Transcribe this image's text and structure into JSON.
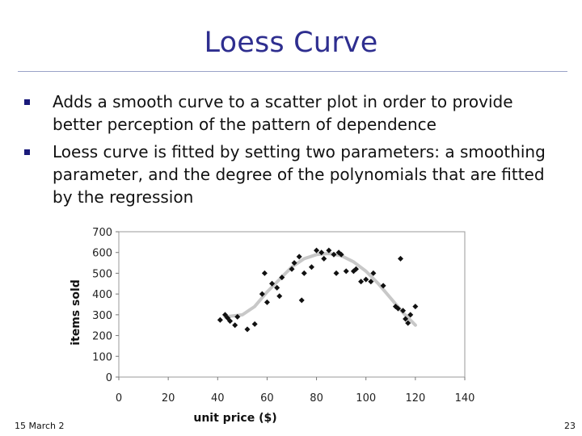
{
  "slide": {
    "title": "Loess Curve",
    "bullets": [
      "Adds a smooth curve to a scatter plot in order to provide better perception of the pattern of dependence",
      "Loess curve is fitted by setting two parameters: a smoothing parameter, and the degree of the polynomials that are fitted by the regression"
    ],
    "footer_date": "15 March 2",
    "page_number": "23",
    "colors": {
      "title": "#2e2e8f",
      "bullet": "#1a1a7a",
      "curve": "#c8c8c8",
      "points": "#111111"
    }
  },
  "chart_data": {
    "type": "scatter",
    "title": "",
    "xlabel": "unit price ($)",
    "ylabel": "items sold",
    "xlim": [
      0,
      140
    ],
    "ylim": [
      0,
      700
    ],
    "xticks": [
      "0",
      "20",
      "40",
      "60",
      "80",
      "100",
      "120",
      "140"
    ],
    "yticks": [
      "0",
      "100",
      "200",
      "300",
      "400",
      "500",
      "600",
      "700"
    ],
    "points": [
      [
        41,
        275
      ],
      [
        43,
        300
      ],
      [
        44,
        285
      ],
      [
        45,
        270
      ],
      [
        47,
        250
      ],
      [
        48,
        290
      ],
      [
        52,
        230
      ],
      [
        55,
        255
      ],
      [
        58,
        400
      ],
      [
        59,
        500
      ],
      [
        60,
        360
      ],
      [
        62,
        450
      ],
      [
        64,
        430
      ],
      [
        65,
        390
      ],
      [
        66,
        480
      ],
      [
        70,
        520
      ],
      [
        71,
        550
      ],
      [
        73,
        580
      ],
      [
        74,
        370
      ],
      [
        75,
        500
      ],
      [
        78,
        530
      ],
      [
        80,
        610
      ],
      [
        82,
        600
      ],
      [
        83,
        570
      ],
      [
        85,
        610
      ],
      [
        87,
        590
      ],
      [
        88,
        500
      ],
      [
        89,
        600
      ],
      [
        90,
        590
      ],
      [
        92,
        510
      ],
      [
        95,
        510
      ],
      [
        96,
        520
      ],
      [
        98,
        460
      ],
      [
        100,
        470
      ],
      [
        102,
        460
      ],
      [
        103,
        500
      ],
      [
        107,
        440
      ],
      [
        112,
        340
      ],
      [
        113,
        330
      ],
      [
        114,
        570
      ],
      [
        115,
        320
      ],
      [
        116,
        280
      ],
      [
        117,
        260
      ],
      [
        118,
        300
      ],
      [
        120,
        340
      ]
    ],
    "loess_curve": [
      [
        43,
        290
      ],
      [
        50,
        300
      ],
      [
        55,
        340
      ],
      [
        60,
        410
      ],
      [
        65,
        470
      ],
      [
        70,
        530
      ],
      [
        75,
        570
      ],
      [
        80,
        590
      ],
      [
        85,
        595
      ],
      [
        90,
        585
      ],
      [
        95,
        555
      ],
      [
        100,
        510
      ],
      [
        105,
        450
      ],
      [
        110,
        380
      ],
      [
        115,
        310
      ],
      [
        120,
        250
      ]
    ]
  }
}
